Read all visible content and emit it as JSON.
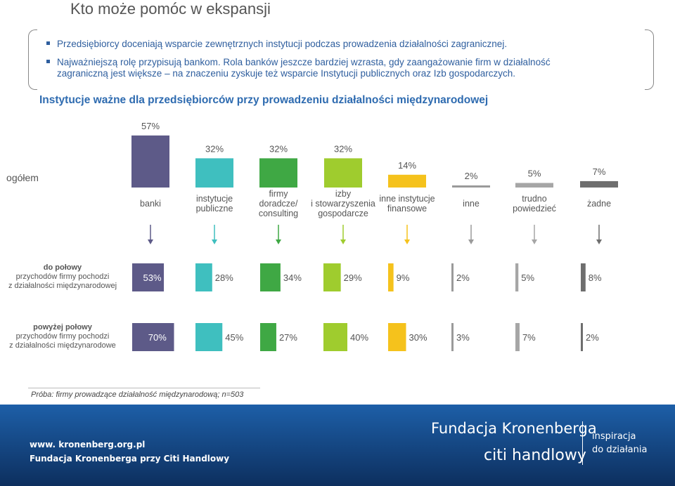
{
  "page_title": "Kto może pomóc w ekspansji",
  "bullets": [
    "Przedsiębiorcy doceniają wsparcie zewnętrznych instytucji podczas prowadzenia działalności zagranicznej.",
    "Najważniejszą rolę przypisują bankom. Rola banków jeszcze bardziej wzrasta, gdy zaangażowanie firm w działalność",
    "zagraniczną jest większe – na znaczeniu zyskuje też wsparcie Instytucji publicznych oraz Izb gospodarczych."
  ],
  "chart_data": {
    "type": "bar",
    "title": "Instytucje ważne dla przedsiębiorców przy prowadzeniu działalności międzynarodowej",
    "categories": [
      [
        "banki"
      ],
      [
        "instytucje",
        "publiczne"
      ],
      [
        "firmy",
        "doradcze/",
        "consulting"
      ],
      [
        "izby",
        "i stowarzyszenia",
        "gospodarcze"
      ],
      [
        "inne instytucje",
        "finansowe"
      ],
      [
        "inne"
      ],
      [
        "trudno",
        "powiedzieć"
      ],
      [
        "żadne"
      ]
    ],
    "colors": [
      "#5d5a88",
      "#3fbfbf",
      "#3fa844",
      "#9fcc2e",
      "#f5c21c",
      "#9a9a9a",
      "#a6a6a6",
      "#6e6e6e"
    ],
    "series": [
      {
        "name": "ogółem",
        "label": [
          "ogółem"
        ],
        "values": [
          57,
          32,
          32,
          32,
          14,
          2,
          5,
          7
        ],
        "value_labels": [
          "57%",
          "32%",
          "32%",
          "32%",
          "14%",
          "2%",
          "5%",
          "7%"
        ]
      },
      {
        "name": "do połowy",
        "label": [
          "do połowy",
          "przychodów firmy pochodzi",
          "z działalności międzynarodowej"
        ],
        "values": [
          53,
          28,
          34,
          29,
          9,
          2,
          5,
          8
        ],
        "value_labels": [
          "53%",
          "28%",
          "34%",
          "29%",
          "9%",
          "2%",
          "5%",
          "8%"
        ]
      },
      {
        "name": "powyżej połowy",
        "label": [
          "powyżej połowy",
          "przychodów firmy pochodzi",
          "z działalności międzynarodowe"
        ],
        "values": [
          70,
          45,
          27,
          40,
          30,
          3,
          7,
          2
        ],
        "value_labels": [
          "70%",
          "45%",
          "27%",
          "40%",
          "30%",
          "3%",
          "7%",
          "2%"
        ]
      }
    ]
  },
  "sample_note": "Próba: firmy prowadzące działalność międzynarodową; n=503",
  "footer": {
    "website": "www. kronenberg.org.pl",
    "foundation": "Fundacja Kronenberga przy Citi Handlowy",
    "brand": "Fundacja Kronenberga",
    "bank": "citi handlowy",
    "tagline_1": "inspiracja",
    "tagline_2": "do działania"
  }
}
